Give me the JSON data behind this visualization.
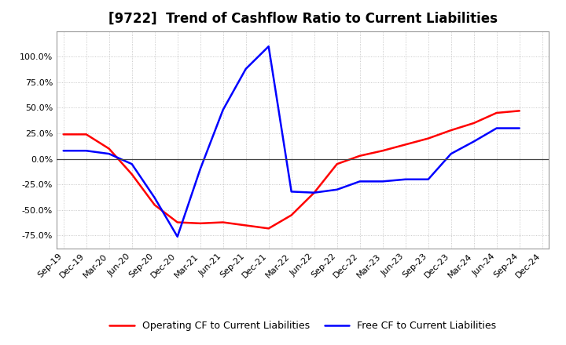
{
  "title": "[9722]  Trend of Cashflow Ratio to Current Liabilities",
  "x_labels": [
    "Sep-19",
    "Dec-19",
    "Mar-20",
    "Jun-20",
    "Sep-20",
    "Dec-20",
    "Mar-21",
    "Jun-21",
    "Sep-21",
    "Dec-21",
    "Mar-22",
    "Jun-22",
    "Sep-22",
    "Dec-22",
    "Mar-23",
    "Jun-23",
    "Sep-23",
    "Dec-23",
    "Mar-24",
    "Jun-24",
    "Sep-24",
    "Dec-24"
  ],
  "operating_cf": [
    24.0,
    24.0,
    10.0,
    -15.0,
    -45.0,
    -62.0,
    -63.0,
    -62.0,
    -65.0,
    -68.0,
    -55.0,
    -33.0,
    -5.0,
    3.0,
    8.0,
    14.0,
    20.0,
    28.0,
    35.0,
    45.0,
    47.0,
    null
  ],
  "free_cf": [
    8.0,
    8.0,
    5.0,
    -5.0,
    -38.0,
    -76.0,
    -10.0,
    48.0,
    88.0,
    110.0,
    -32.0,
    -33.0,
    -30.0,
    -22.0,
    -22.0,
    -20.0,
    -20.0,
    5.0,
    17.0,
    30.0,
    30.0,
    null
  ],
  "ylim": [
    -87.5,
    125.0
  ],
  "yticks": [
    -75.0,
    -50.0,
    -25.0,
    0.0,
    25.0,
    50.0,
    75.0,
    100.0
  ],
  "operating_color": "#ff0000",
  "free_color": "#0000ff",
  "background_color": "#ffffff",
  "grid_color": "#bbbbbb",
  "legend_operating": "Operating CF to Current Liabilities",
  "legend_free": "Free CF to Current Liabilities",
  "title_fontsize": 12,
  "tick_fontsize": 8,
  "legend_fontsize": 9
}
